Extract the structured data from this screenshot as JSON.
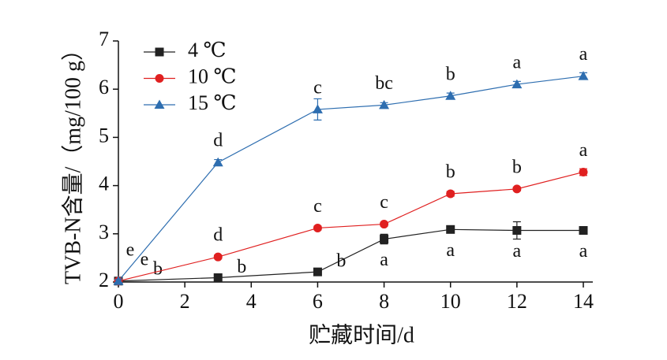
{
  "chart_data": {
    "type": "line",
    "x_label": "贮藏时间/d",
    "y_label": "TVB-N含量/（mg/100 g）",
    "x": [
      0,
      3,
      6,
      8,
      10,
      12,
      14
    ],
    "xlim": [
      0,
      14
    ],
    "xticks": [
      0,
      2,
      4,
      6,
      8,
      10,
      12,
      14
    ],
    "ylim": [
      2,
      7
    ],
    "yticks": [
      2,
      3,
      4,
      5,
      6,
      7
    ],
    "grid": false,
    "legend": "top-left",
    "series": [
      {
        "name": "4 ℃",
        "color": "#222222",
        "marker": "square",
        "values": [
          2.02,
          2.09,
          2.21,
          2.89,
          3.09,
          3.07,
          3.07
        ],
        "errors": [
          0.03,
          0.04,
          0.04,
          0.1,
          0.04,
          0.18,
          0.06
        ],
        "labels": [
          "b",
          "b",
          "b",
          "a",
          "a",
          "a",
          "a"
        ]
      },
      {
        "name": "10 ℃",
        "color": "#e02020",
        "marker": "circle",
        "values": [
          2.02,
          2.52,
          3.12,
          3.2,
          3.83,
          3.93,
          4.28
        ],
        "errors": [
          0.03,
          0.04,
          0.04,
          0.04,
          0.05,
          0.04,
          0.07
        ],
        "labels": [
          "e",
          "d",
          "c",
          "c",
          "b",
          "b",
          "a"
        ]
      },
      {
        "name": "15 ℃",
        "color": "#2e6eb0",
        "marker": "triangle",
        "values": [
          2.02,
          4.48,
          5.58,
          5.67,
          5.86,
          6.1,
          6.27
        ],
        "errors": [
          0.03,
          0.06,
          0.22,
          0.05,
          0.06,
          0.06,
          0.07
        ],
        "labels": [
          "e",
          "d",
          "c",
          "bc",
          "b",
          "a",
          "a"
        ]
      }
    ]
  }
}
